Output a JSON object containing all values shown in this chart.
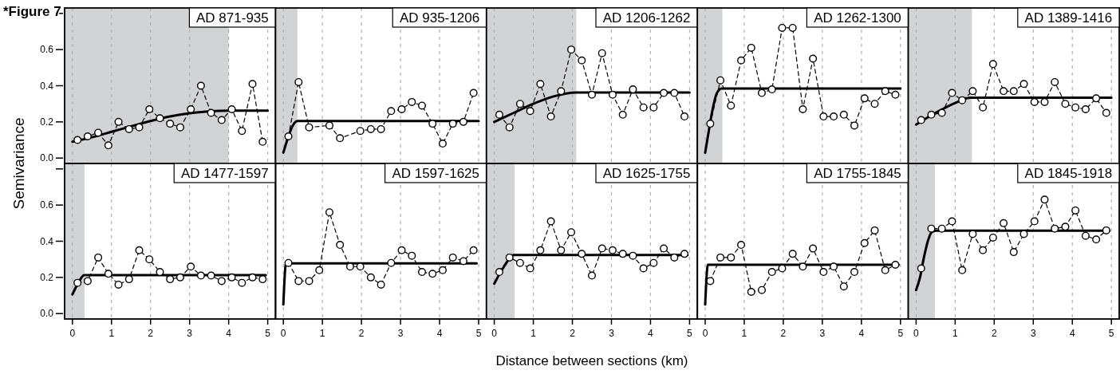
{
  "chart_data": [
    {
      "type": "line",
      "title": "AD 871-935",
      "ylabel": "Semivariance",
      "annotations": [
        "*Figure 7"
      ],
      "x": [
        0.13,
        0.39,
        0.66,
        0.92,
        1.18,
        1.45,
        1.71,
        1.97,
        2.24,
        2.5,
        2.76,
        3.03,
        3.29,
        3.55,
        3.82,
        4.08,
        4.34,
        4.61,
        4.87
      ],
      "xlim": [
        -0.2,
        5.2
      ],
      "xticks": [
        0,
        1,
        2,
        3,
        4,
        5
      ],
      "ylim": [
        -0.03,
        0.83
      ],
      "yticks": [
        {
          "value": 0,
          "label": "0.0"
        },
        {
          "value": 0.2,
          "label": "0.2"
        },
        {
          "value": 0.4,
          "label": "0.4"
        },
        {
          "value": 0.6,
          "label": "0.6"
        },
        {
          "value": 0.8,
          "label": null
        }
      ],
      "grid": "x",
      "tick_labels": "y",
      "bands": [
        {
          "axis": "x",
          "from": -0.2,
          "to": 4,
          "color": "#d1d3d4"
        }
      ],
      "series": [
        {
          "color": "#000000",
          "marker": "none",
          "line_style": "solid",
          "x": [
            0,
            0.5,
            1,
            1.5,
            2,
            2.5,
            3,
            3.5,
            4,
            5
          ],
          "values": [
            0.09,
            0.115,
            0.145,
            0.175,
            0.205,
            0.23,
            0.248,
            0.258,
            0.262,
            0.262
          ]
        },
        {
          "color": "#000000",
          "marker": "circle",
          "line_style": "dashed",
          "values": [
            0.1,
            0.12,
            0.14,
            0.07,
            0.2,
            0.16,
            0.17,
            0.27,
            0.22,
            0.19,
            0.17,
            0.27,
            0.4,
            0.25,
            0.21,
            0.27,
            0.15,
            0.41,
            0.09
          ]
        }
      ]
    },
    {
      "type": "line",
      "title": "AD 935-1206",
      "x": [
        0.13,
        0.39,
        0.66,
        0.92,
        1.18,
        1.45,
        1.71,
        1.97,
        2.24,
        2.5,
        2.76,
        3.03,
        3.29,
        3.55,
        3.82,
        4.08,
        4.34,
        4.61,
        4.87
      ],
      "xlim": [
        -0.2,
        5.2
      ],
      "xticks": [
        0,
        1,
        2,
        3,
        4,
        5
      ],
      "ylim": [
        -0.03,
        0.83
      ],
      "grid": "x",
      "tick_labels": false,
      "bands": [
        {
          "axis": "x",
          "from": -0.2,
          "to": 0.36,
          "color": "#d1d3d4"
        }
      ],
      "series": [
        {
          "color": "#000000",
          "marker": "none",
          "line_style": "solid",
          "x": [
            0,
            0.36,
            5
          ],
          "values": [
            0.03,
            0.205,
            0.205
          ]
        },
        {
          "color": "#000000",
          "marker": "circle",
          "line_style": "dashed",
          "values": [
            0.12,
            0.42,
            0.17,
            null,
            0.18,
            0.11,
            null,
            0.15,
            0.16,
            0.16,
            0.26,
            0.27,
            0.31,
            0.29,
            0.19,
            0.08,
            0.19,
            0.2,
            0.36
          ]
        }
      ]
    },
    {
      "type": "line",
      "title": "AD 1206-1262",
      "x": [
        0.13,
        0.39,
        0.66,
        0.92,
        1.18,
        1.45,
        1.71,
        1.97,
        2.24,
        2.5,
        2.76,
        3.03,
        3.29,
        3.55,
        3.82,
        4.08,
        4.34,
        4.61,
        4.87
      ],
      "xlim": [
        -0.2,
        5.2
      ],
      "xticks": [
        0,
        1,
        2,
        3,
        4,
        5
      ],
      "ylim": [
        -0.03,
        0.83
      ],
      "grid": "x",
      "tick_labels": false,
      "bands": [
        {
          "axis": "x",
          "from": -0.2,
          "to": 2.1,
          "color": "#d1d3d4"
        }
      ],
      "series": [
        {
          "color": "#000000",
          "marker": "none",
          "line_style": "solid",
          "x": [
            0,
            0.5,
            1,
            1.5,
            2.1,
            5
          ],
          "values": [
            0.2,
            0.25,
            0.3,
            0.34,
            0.363,
            0.363
          ]
        },
        {
          "color": "#000000",
          "marker": "circle",
          "line_style": "dashed",
          "values": [
            0.24,
            0.17,
            0.3,
            0.26,
            0.41,
            0.23,
            0.37,
            0.6,
            0.54,
            0.35,
            0.58,
            0.35,
            0.24,
            0.38,
            0.28,
            0.28,
            0.36,
            0.36,
            0.23
          ]
        }
      ]
    },
    {
      "type": "line",
      "title": "AD 1262-1300",
      "x": [
        0.13,
        0.39,
        0.66,
        0.92,
        1.18,
        1.45,
        1.71,
        1.97,
        2.24,
        2.5,
        2.76,
        3.03,
        3.29,
        3.55,
        3.82,
        4.08,
        4.34,
        4.61,
        4.87
      ],
      "xlim": [
        -0.2,
        5.2
      ],
      "xticks": [
        0,
        1,
        2,
        3,
        4,
        5
      ],
      "ylim": [
        -0.03,
        0.83
      ],
      "grid": "x",
      "tick_labels": false,
      "bands": [
        {
          "axis": "x",
          "from": -0.2,
          "to": 0.44,
          "color": "#d1d3d4"
        }
      ],
      "series": [
        {
          "color": "#000000",
          "marker": "none",
          "line_style": "solid",
          "x": [
            0,
            0.1,
            0.2,
            0.3,
            0.42,
            5
          ],
          "values": [
            0.03,
            0.16,
            0.28,
            0.36,
            0.385,
            0.385
          ]
        },
        {
          "color": "#000000",
          "marker": "circle",
          "line_style": "dashed",
          "values": [
            0.19,
            0.43,
            0.29,
            0.54,
            0.61,
            0.36,
            0.38,
            0.72,
            0.72,
            0.27,
            0.55,
            0.23,
            0.23,
            0.24,
            0.18,
            0.33,
            0.3,
            0.37,
            0.35
          ]
        }
      ]
    },
    {
      "type": "line",
      "title": "AD 1389-1416",
      "x": [
        0.13,
        0.39,
        0.66,
        0.92,
        1.18,
        1.45,
        1.71,
        1.97,
        2.24,
        2.5,
        2.76,
        3.03,
        3.29,
        3.55,
        3.82,
        4.08,
        4.34,
        4.61,
        4.87
      ],
      "xlim": [
        -0.2,
        5.2
      ],
      "xticks": [
        0,
        1,
        2,
        3,
        4,
        5
      ],
      "ylim": [
        -0.03,
        0.83
      ],
      "grid": "x",
      "tick_labels": false,
      "bands": [
        {
          "axis": "x",
          "from": -0.2,
          "to": 1.43,
          "color": "#d1d3d4"
        }
      ],
      "series": [
        {
          "color": "#000000",
          "marker": "none",
          "line_style": "solid",
          "x": [
            0,
            0.5,
            1,
            1.4,
            5
          ],
          "values": [
            0.185,
            0.25,
            0.305,
            0.334,
            0.334
          ]
        },
        {
          "color": "#000000",
          "marker": "circle",
          "line_style": "dashed",
          "values": [
            0.21,
            0.24,
            0.25,
            0.36,
            0.32,
            0.37,
            0.28,
            0.52,
            0.37,
            0.37,
            0.41,
            0.31,
            0.31,
            0.42,
            0.3,
            0.28,
            0.27,
            0.33,
            0.25
          ]
        }
      ]
    },
    {
      "type": "line",
      "title": "AD 1477-1597",
      "x": [
        0.13,
        0.39,
        0.66,
        0.92,
        1.18,
        1.45,
        1.71,
        1.97,
        2.24,
        2.5,
        2.76,
        3.03,
        3.29,
        3.55,
        3.82,
        4.08,
        4.34,
        4.61,
        4.87
      ],
      "xlim": [
        -0.2,
        5.2
      ],
      "xticks": [
        0,
        1,
        2,
        3,
        4,
        5
      ],
      "ylim": [
        -0.03,
        0.83
      ],
      "yticks": [
        {
          "value": 0,
          "label": "0.0"
        },
        {
          "value": 0.2,
          "label": "0.2"
        },
        {
          "value": 0.4,
          "label": "0.4"
        },
        {
          "value": 0.6,
          "label": "0.6"
        },
        {
          "value": 0.8,
          "label": null
        }
      ],
      "grid": "x",
      "bands": [
        {
          "axis": "x",
          "from": -0.2,
          "to": 0.31,
          "color": "#d1d3d4"
        }
      ],
      "series": [
        {
          "color": "#000000",
          "marker": "none",
          "line_style": "solid",
          "x": [
            0,
            0.15,
            0.3,
            4.95
          ],
          "values": [
            0.106,
            0.17,
            0.213,
            0.213
          ]
        },
        {
          "color": "#000000",
          "marker": "circle",
          "line_style": "dashed",
          "values": [
            0.17,
            0.18,
            0.31,
            0.22,
            0.16,
            0.19,
            0.35,
            0.3,
            0.23,
            0.19,
            0.2,
            0.26,
            0.21,
            0.21,
            0.18,
            0.2,
            0.17,
            0.2,
            0.19
          ]
        }
      ]
    },
    {
      "type": "line",
      "title": "AD 1597-1625",
      "x": [
        0.13,
        0.39,
        0.66,
        0.92,
        1.18,
        1.45,
        1.71,
        1.97,
        2.24,
        2.5,
        2.76,
        3.03,
        3.29,
        3.55,
        3.82,
        4.08,
        4.34,
        4.61,
        4.87
      ],
      "xlim": [
        -0.2,
        5.2
      ],
      "xticks": [
        0,
        1,
        2,
        3,
        4,
        5
      ],
      "ylim": [
        -0.03,
        0.83
      ],
      "grid": "x",
      "tick_labels": "x",
      "series": [
        {
          "color": "#000000",
          "marker": "none",
          "line_style": "solid",
          "x": [
            0,
            0.07,
            4.95
          ],
          "values": [
            0.05,
            0.278,
            0.278
          ]
        },
        {
          "color": "#000000",
          "marker": "circle",
          "line_style": "dashed",
          "values": [
            0.28,
            0.18,
            0.18,
            0.24,
            0.56,
            0.38,
            0.26,
            0.26,
            0.2,
            0.16,
            0.28,
            0.35,
            0.32,
            0.23,
            0.22,
            0.24,
            0.31,
            0.29,
            0.35
          ]
        }
      ]
    },
    {
      "type": "line",
      "title": "AD 1625-1755",
      "xlabel": "Distance between sections (km)",
      "x": [
        0.13,
        0.39,
        0.66,
        0.92,
        1.18,
        1.45,
        1.71,
        1.97,
        2.24,
        2.5,
        2.76,
        3.03,
        3.29,
        3.55,
        3.82,
        4.08,
        4.34,
        4.61,
        4.87
      ],
      "xlim": [
        -0.2,
        5.2
      ],
      "xticks": [
        0,
        1,
        2,
        3,
        4,
        5
      ],
      "ylim": [
        -0.03,
        0.83
      ],
      "grid": "x",
      "tick_labels": "x",
      "bands": [
        {
          "axis": "x",
          "from": -0.2,
          "to": 0.52,
          "color": "#d1d3d4"
        }
      ],
      "series": [
        {
          "color": "#000000",
          "marker": "none",
          "line_style": "solid",
          "x": [
            0,
            0.25,
            0.5,
            4.95
          ],
          "values": [
            0.165,
            0.26,
            0.324,
            0.324
          ]
        },
        {
          "color": "#000000",
          "marker": "circle",
          "line_style": "dashed",
          "values": [
            0.23,
            0.31,
            0.28,
            0.25,
            0.35,
            0.51,
            0.35,
            0.45,
            0.33,
            0.21,
            0.36,
            0.35,
            0.33,
            0.32,
            0.25,
            0.28,
            0.36,
            0.31,
            0.33
          ]
        }
      ]
    },
    {
      "type": "line",
      "title": "AD 1755-1845",
      "x": [
        0.13,
        0.39,
        0.66,
        0.92,
        1.18,
        1.45,
        1.71,
        1.97,
        2.24,
        2.5,
        2.76,
        3.03,
        3.29,
        3.55,
        3.82,
        4.08,
        4.34,
        4.61,
        4.87
      ],
      "xlim": [
        -0.2,
        5.2
      ],
      "xticks": [
        0,
        1,
        2,
        3,
        4,
        5
      ],
      "ylim": [
        -0.03,
        0.83
      ],
      "grid": "x",
      "tick_labels": "x",
      "series": [
        {
          "color": "#000000",
          "marker": "none",
          "line_style": "solid",
          "x": [
            0,
            0.07,
            4.95
          ],
          "values": [
            0.05,
            0.27,
            0.27
          ]
        },
        {
          "color": "#000000",
          "marker": "circle",
          "line_style": "dashed",
          "values": [
            0.18,
            0.31,
            0.31,
            0.38,
            0.12,
            0.13,
            0.23,
            0.25,
            0.33,
            0.26,
            0.36,
            0.23,
            0.26,
            0.15,
            0.23,
            0.39,
            0.46,
            0.24,
            0.27
          ]
        }
      ]
    },
    {
      "type": "line",
      "title": "AD 1845-1918",
      "x": [
        0.13,
        0.39,
        0.66,
        0.92,
        1.18,
        1.45,
        1.71,
        1.97,
        2.24,
        2.5,
        2.76,
        3.03,
        3.29,
        3.55,
        3.82,
        4.08,
        4.34,
        4.61,
        4.87
      ],
      "xlim": [
        -0.2,
        5.2
      ],
      "xticks": [
        0,
        1,
        2,
        3,
        4,
        5
      ],
      "ylim": [
        -0.03,
        0.83
      ],
      "grid": "x",
      "tick_labels": "x",
      "bands": [
        {
          "axis": "x",
          "from": -0.2,
          "to": 0.48,
          "color": "#d1d3d4"
        }
      ],
      "series": [
        {
          "color": "#000000",
          "marker": "none",
          "line_style": "solid",
          "x": [
            0,
            0.1,
            0.2,
            0.3,
            0.4,
            0.5,
            4.95
          ],
          "values": [
            0.13,
            0.2,
            0.31,
            0.4,
            0.45,
            0.458,
            0.458
          ]
        },
        {
          "color": "#000000",
          "marker": "circle",
          "line_style": "dashed",
          "values": [
            0.25,
            0.47,
            0.47,
            0.51,
            0.24,
            0.44,
            0.35,
            0.42,
            0.5,
            0.34,
            0.44,
            0.51,
            0.63,
            0.47,
            0.48,
            0.57,
            0.43,
            0.41,
            0.46
          ]
        }
      ]
    }
  ]
}
